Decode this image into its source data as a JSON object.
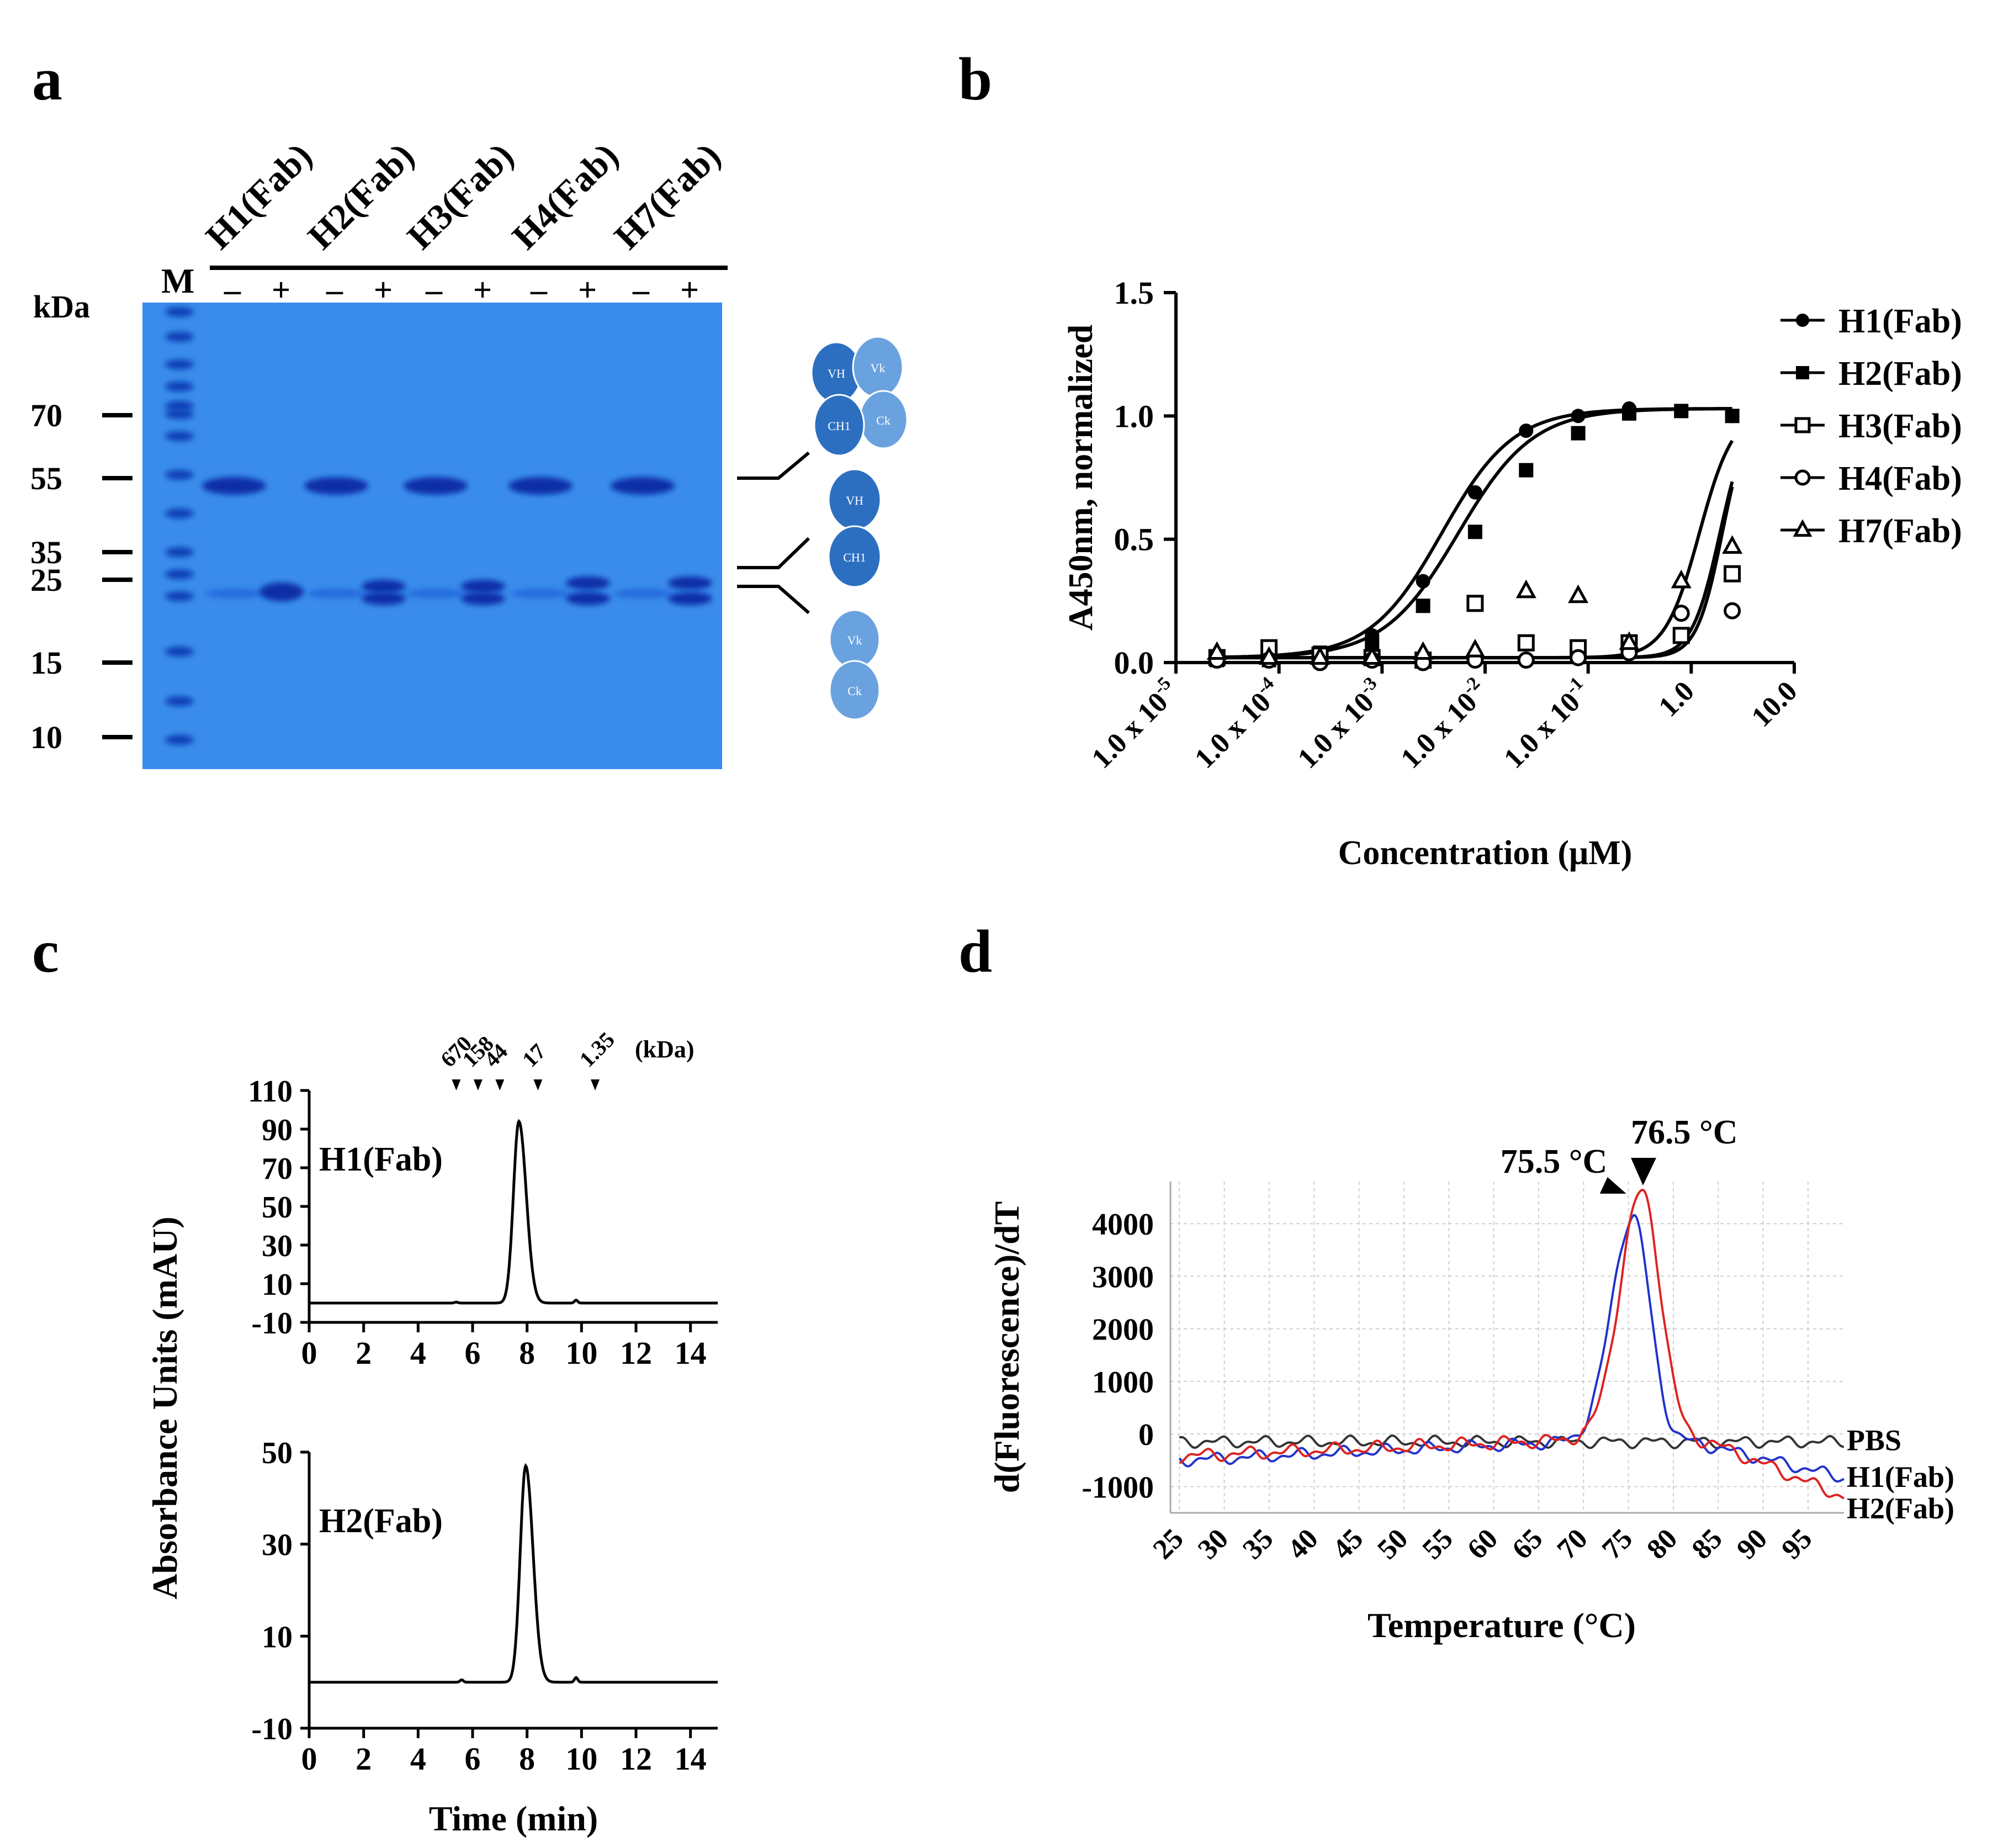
{
  "panels": {
    "a": "a",
    "b": "b",
    "c": "c",
    "d": "d"
  },
  "chart_data": [
    {
      "panel": "a",
      "type": "gel",
      "unit_label": "kDa",
      "marker_label": "M",
      "lanes": [
        {
          "name": "H1(Fab)",
          "signs": [
            "–",
            "+"
          ]
        },
        {
          "name": "H2(Fab)",
          "signs": [
            "–",
            "+"
          ]
        },
        {
          "name": "H3(Fab)",
          "signs": [
            "–",
            "+"
          ]
        },
        {
          "name": "H4(Fab)",
          "signs": [
            "–",
            "+"
          ]
        },
        {
          "name": "H7(Fab)",
          "signs": [
            "–",
            "+"
          ]
        }
      ],
      "markers": [
        "70",
        "55",
        "35",
        "25",
        "15",
        "10"
      ],
      "schematic_labels": {
        "fab": [
          "VH",
          "Vk",
          "CH1",
          "Ck"
        ],
        "heavy": [
          "VH",
          "CH1"
        ],
        "light": [
          "Vk",
          "Ck"
        ]
      }
    },
    {
      "panel": "b",
      "type": "scatter",
      "xlabel": "Concentration (μM)",
      "ylabel": "A450nm, normalized",
      "xscale": "log",
      "xlim": [
        1e-05,
        10
      ],
      "ylim": [
        0,
        1.5
      ],
      "x_ticks": [
        {
          "mant": "1.0 x 10",
          "exp": "-5"
        },
        {
          "mant": "1.0 x 10",
          "exp": "-4"
        },
        {
          "mant": "1.0 x 10",
          "exp": "-3"
        },
        {
          "mant": "1.0 x 10",
          "exp": "-2"
        },
        {
          "mant": "1.0 x 10",
          "exp": "-1"
        },
        {
          "mant": "1.0",
          "exp": ""
        },
        {
          "mant": "10.0",
          "exp": ""
        }
      ],
      "y_ticks": [
        "0.0",
        "0.5",
        "1.0",
        "1.5"
      ],
      "legend_position": "right",
      "x": [
        2.5e-05,
        8e-05,
        0.00025,
        0.0008,
        0.0025,
        0.008,
        0.025,
        0.08,
        0.25,
        0.8,
        2.5
      ],
      "series": [
        {
          "name": "H1(Fab)",
          "marker": "filled-circle",
          "values": [
            0.02,
            0.02,
            0.03,
            0.11,
            0.33,
            0.69,
            0.94,
            1.0,
            1.03,
            1.02,
            1.0
          ],
          "fit": {
            "ec50": 0.0038,
            "hill": 1.25
          }
        },
        {
          "name": "H2(Fab)",
          "marker": "filled-square",
          "values": [
            0.01,
            0.01,
            0.04,
            0.08,
            0.23,
            0.53,
            0.78,
            0.93,
            1.01,
            1.02,
            1.0
          ],
          "fit": {
            "ec50": 0.0055,
            "hill": 1.2
          }
        },
        {
          "name": "H3(Fab)",
          "marker": "open-square",
          "values": [
            0.02,
            0.06,
            0.03,
            0.02,
            0.01,
            0.24,
            0.08,
            0.06,
            0.08,
            0.11,
            0.36
          ],
          "fit": {
            "ec50": 1.9,
            "hill": 3.2
          }
        },
        {
          "name": "H4(Fab)",
          "marker": "open-circle",
          "values": [
            0.01,
            0.01,
            0.0,
            0.01,
            0.0,
            0.01,
            0.01,
            0.02,
            0.04,
            0.2,
            0.21
          ],
          "fit": {
            "ec50": 2.0,
            "hill": 3.5
          }
        },
        {
          "name": "H7(Fab)",
          "marker": "open-triangle",
          "values": [
            0.04,
            0.02,
            0.02,
            0.02,
            0.04,
            0.05,
            0.29,
            0.27,
            0.08,
            0.33,
            0.47
          ],
          "fit": {
            "ec50": 1.2,
            "hill": 2.6
          }
        }
      ]
    },
    {
      "panel": "c",
      "type": "line",
      "ylabel": "Absorbance Units (mAU)",
      "xlabel": "Time (min)",
      "x_ticks": [
        "0",
        "2",
        "4",
        "6",
        "8",
        "10",
        "12",
        "14"
      ],
      "xlim": [
        0,
        15
      ],
      "mw_markers": {
        "unit": "(kDa)",
        "items": [
          {
            "label": "670",
            "t": 5.4
          },
          {
            "label": "158",
            "t": 6.2
          },
          {
            "label": "44",
            "t": 7.0
          },
          {
            "label": "17",
            "t": 8.4
          },
          {
            "label": "1.35",
            "t": 10.5
          }
        ]
      },
      "plots": [
        {
          "name": "H1(Fab)",
          "ylim": [
            -10,
            110
          ],
          "y_ticks": [
            "110",
            "90",
            "70",
            "50",
            "30",
            "10",
            "-10"
          ],
          "baseline": 0,
          "peak": {
            "t": 7.7,
            "height": 94,
            "width": 0.2
          },
          "minor": [
            {
              "t": 5.4,
              "height": 0.5
            },
            {
              "t": 9.8,
              "height": 1.5
            }
          ]
        },
        {
          "name": "H2(Fab)",
          "ylim": [
            -10,
            50
          ],
          "y_ticks": [
            "50",
            "30",
            "10",
            "-10"
          ],
          "baseline": 0,
          "peak": {
            "t": 7.95,
            "height": 47,
            "width": 0.2
          },
          "minor": [
            {
              "t": 5.6,
              "height": 0.5
            },
            {
              "t": 9.8,
              "height": 1.0
            }
          ]
        }
      ]
    },
    {
      "panel": "d",
      "type": "line",
      "ylabel": "d(Fluorescence)/dT",
      "xlabel": "Temperature (°C)",
      "xlim": [
        24,
        99
      ],
      "ylim": [
        -1500,
        4800
      ],
      "x_ticks": [
        "25",
        "30",
        "35",
        "40",
        "45",
        "50",
        "55",
        "60",
        "65",
        "70",
        "75",
        "80",
        "85",
        "90",
        "95"
      ],
      "y_ticks": [
        "4000",
        "3000",
        "2000",
        "1000",
        "0",
        "-1000"
      ],
      "colors": {
        "PBS": "#333333",
        "H1(Fab)": "#2233cc",
        "H2(Fab)": "#dd2222"
      },
      "series": [
        {
          "name": "PBS",
          "peak": null
        },
        {
          "name": "H1(Fab)",
          "peak": {
            "tm": 75.5,
            "value": 4150,
            "label": "75.5 °C"
          }
        },
        {
          "name": "H2(Fab)",
          "peak": {
            "tm": 76.5,
            "value": 4600,
            "label": "76.5 °C"
          }
        }
      ]
    }
  ]
}
